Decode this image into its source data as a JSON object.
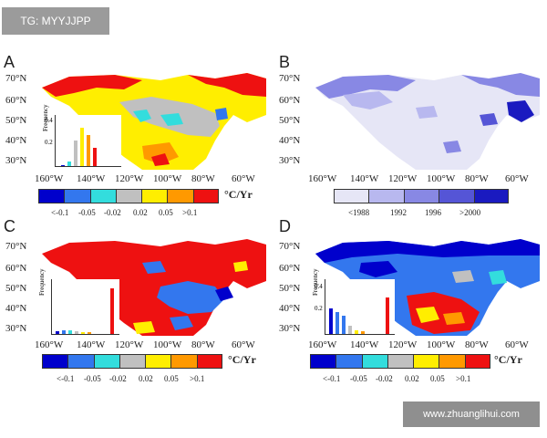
{
  "watermark_top": "TG: MYYJJPP",
  "watermark_bottom": "www.zhuanglihui.com",
  "panels": [
    {
      "letter": "A"
    },
    {
      "letter": "B"
    },
    {
      "letter": "C"
    },
    {
      "letter": "D"
    }
  ],
  "lat_labels": [
    "70°N",
    "60°N",
    "50°N",
    "40°N",
    "30°N"
  ],
  "lon_labels": [
    "160°W",
    "140°W",
    "120°W",
    "100°W",
    "80°W",
    "60°W"
  ],
  "trend_unit": "°C/Yr",
  "trend_labels": [
    "<-0.1",
    "-0.05",
    "-0.02",
    "0.02",
    "0.05",
    ">0.1"
  ],
  "year_labels": [
    "<1988",
    "1992",
    "1996",
    ">2000"
  ],
  "inset_ticks": [
    "0.4",
    "0.2"
  ],
  "inset_ylabel": "Frequency",
  "colors": {
    "trend": [
      "#0000cc",
      "#3377ee",
      "#33dddd",
      "#c0c0c0",
      "#ffee00",
      "#ff9900",
      "#ee1111"
    ],
    "years": [
      "#e6e6f6",
      "#b8b8ef",
      "#8888e4",
      "#5555d6",
      "#1a1ac0"
    ]
  }
}
